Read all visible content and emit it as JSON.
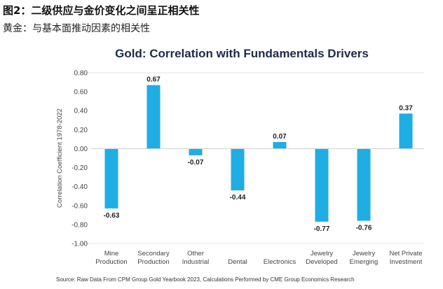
{
  "header": {
    "title": "图2：二级供应与金价变化之间呈正相关性",
    "subtitle": "黄金：与基本面推动因素的相关性"
  },
  "chart_data": {
    "type": "bar",
    "title": "Gold: Correlation with Fundamentals Drivers",
    "ylabel": "Correlation Coefficient 1978-2022",
    "xlabel": "",
    "categories": [
      [
        "Mine",
        "Production"
      ],
      [
        "Secondary",
        "Production"
      ],
      [
        "Other",
        "Industrial"
      ],
      [
        "",
        "Dental"
      ],
      [
        "",
        "Electronics"
      ],
      [
        "Jewelry",
        "Developed"
      ],
      [
        "Jewelry",
        "Emerging"
      ],
      [
        "Net Private",
        "Investment"
      ]
    ],
    "values": [
      -0.63,
      0.67,
      -0.07,
      -0.44,
      0.07,
      -0.77,
      -0.76,
      0.37
    ],
    "data_labels": [
      "-0.63",
      "0.67",
      "-0.07",
      "-0.44",
      "0.07",
      "-0.77",
      "-0.76",
      "0.37"
    ],
    "ylim": [
      -1.0,
      0.8
    ],
    "yticks": [
      "0.80",
      "0.60",
      "0.40",
      "0.20",
      "0.00",
      "-0.20",
      "-0.40",
      "-0.60",
      "-0.80",
      "-1.00"
    ],
    "bar_color": "#1eaee3",
    "grid": false,
    "source": "Source: Raw Data From CPM Group Gold Yearbook 2023, Calculations Performed by CME Group Economics Research"
  }
}
